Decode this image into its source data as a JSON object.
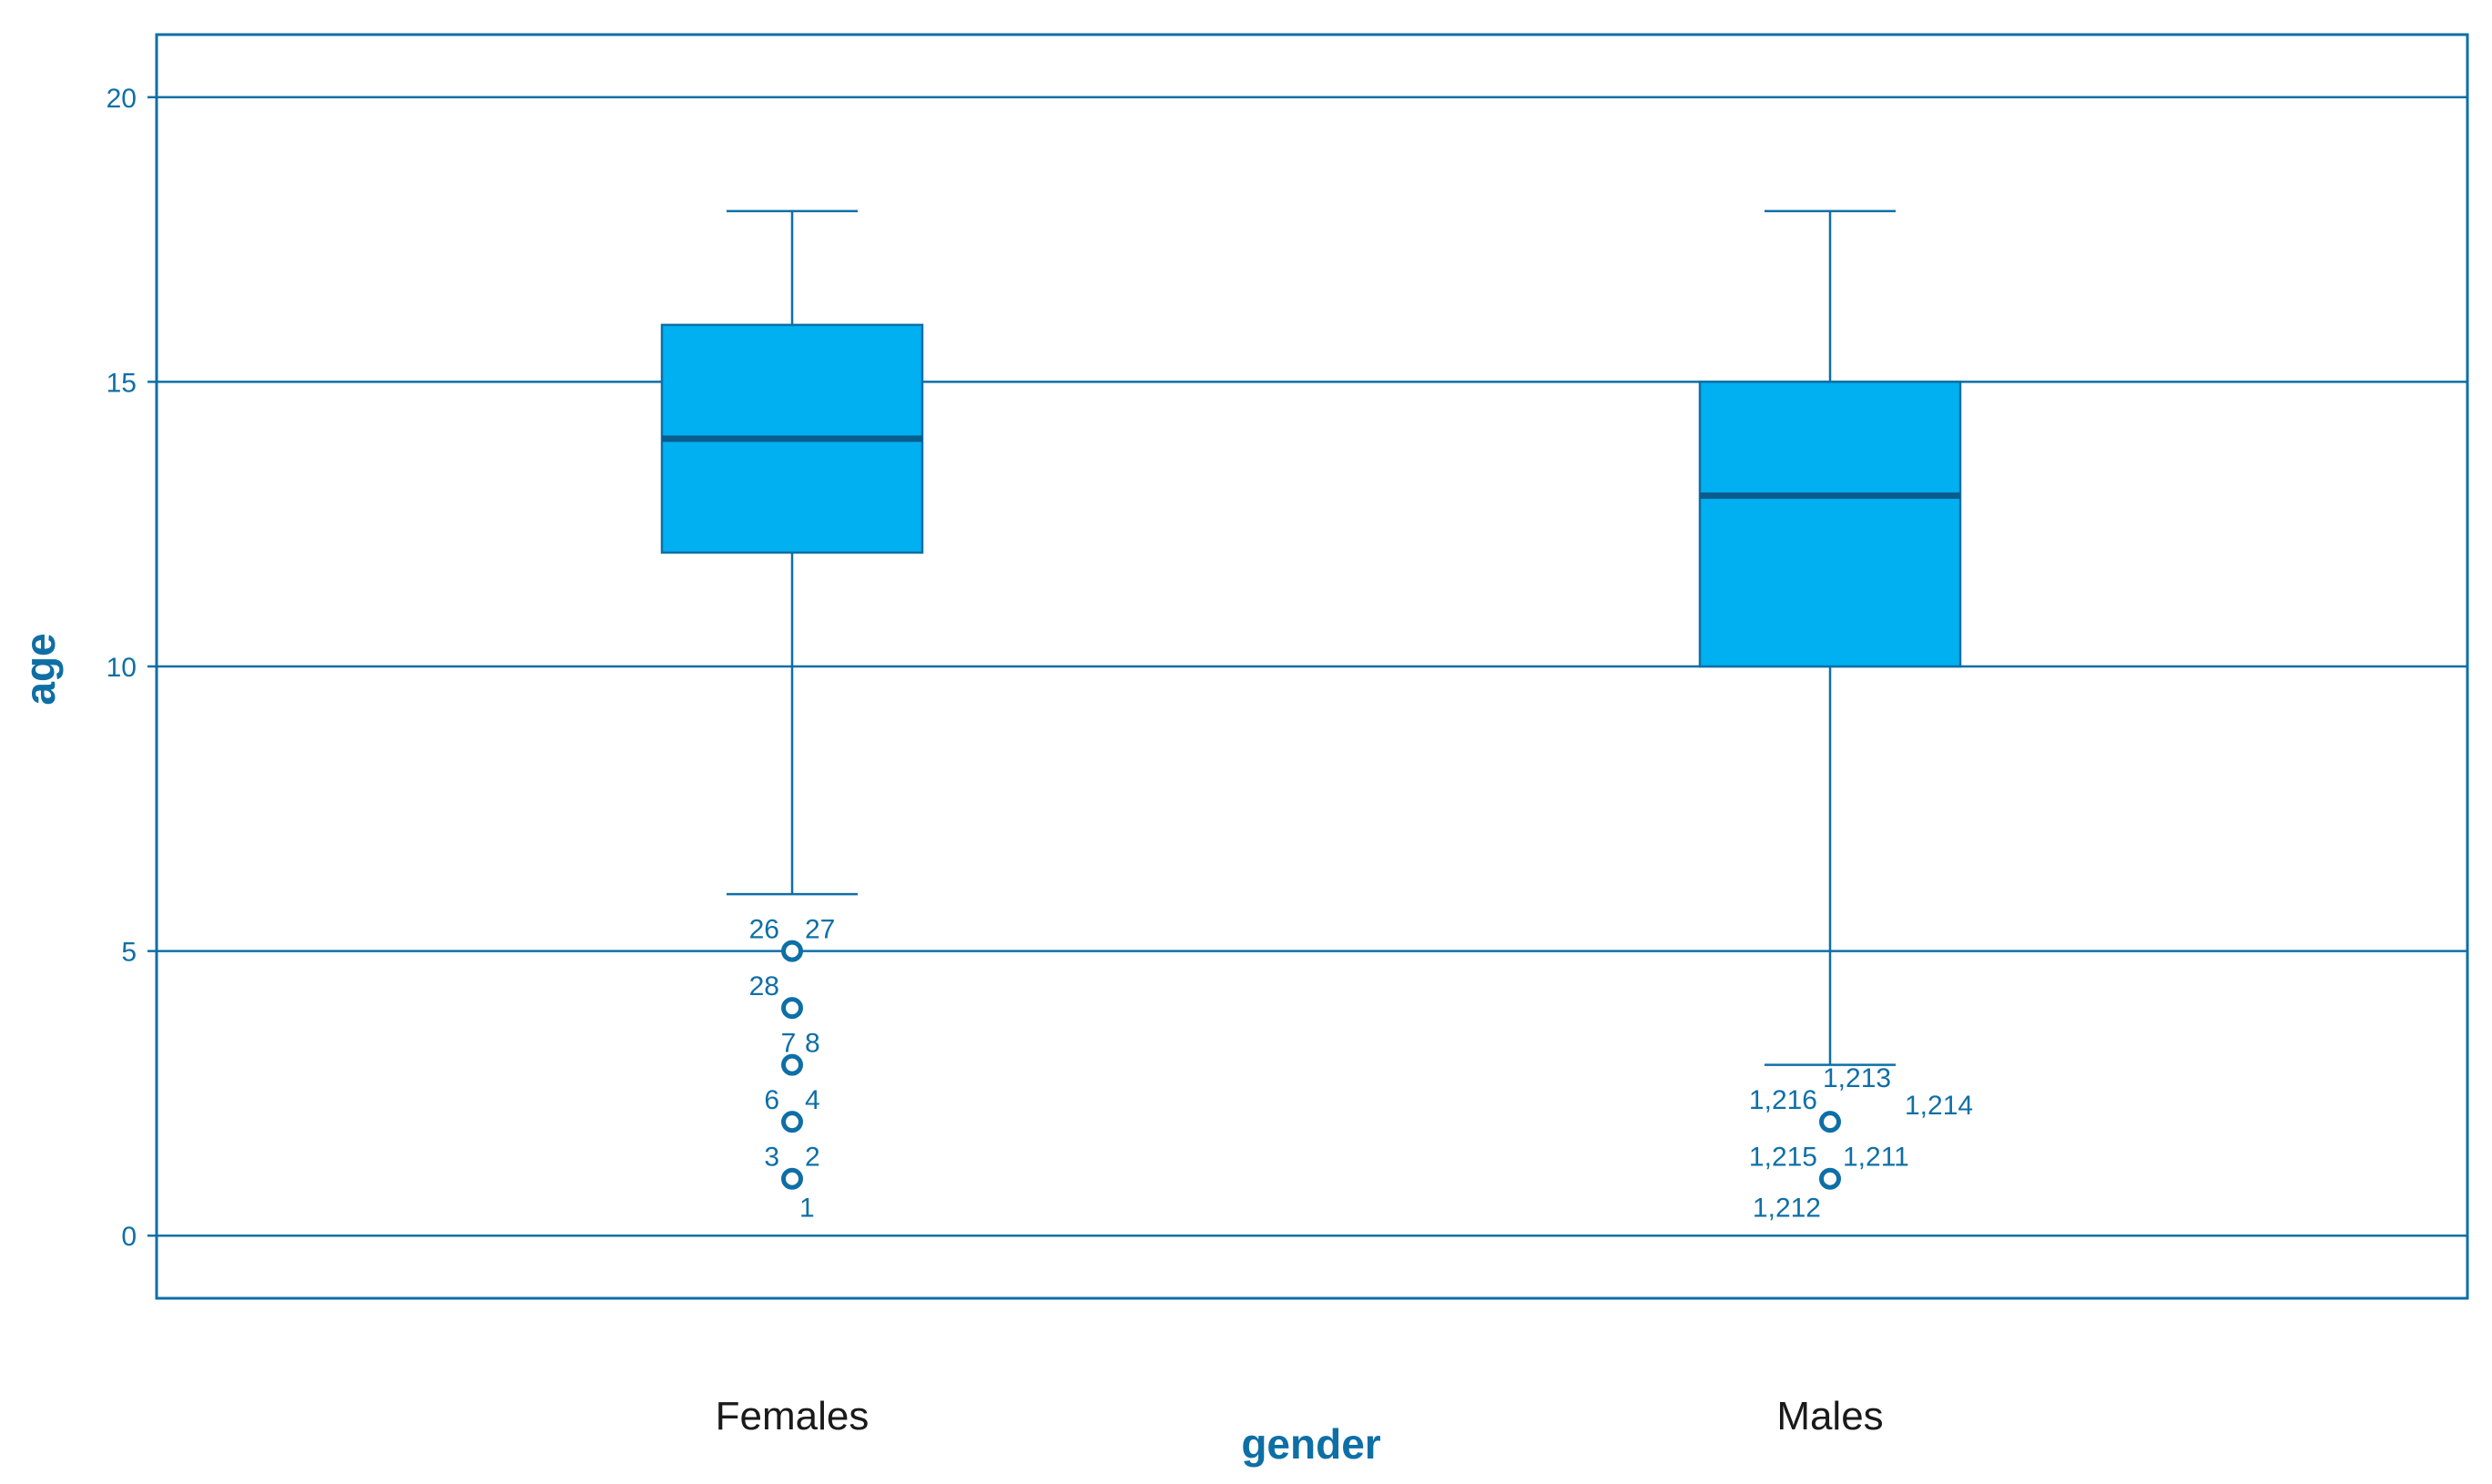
{
  "colors": {
    "box_fill": "#00b0f0",
    "line": "#0e6fa6",
    "median": "#0b5c8c",
    "tick_text": "#0e6fa6",
    "axis_title": "#0e6fa6",
    "category_text": "#1a1a1a",
    "background": "#ffffff"
  },
  "chart_data": {
    "type": "boxplot",
    "xlabel": "gender",
    "ylabel": "age",
    "ylim": [
      -1.1,
      21.1
    ],
    "yticks": [
      0,
      5,
      10,
      15,
      20
    ],
    "grid": "horizontal",
    "categories": [
      "Females",
      "Males"
    ],
    "boxes": [
      {
        "category": "Females",
        "whisker_low": 6,
        "q1": 12,
        "median": 14,
        "q3": 16,
        "whisker_high": 18,
        "outliers": [
          {
            "value": 5,
            "labels": [
              {
                "text": "26",
                "side": "left"
              },
              {
                "text": "27",
                "side": "right"
              }
            ]
          },
          {
            "value": 4,
            "labels": [
              {
                "text": "28",
                "side": "left"
              }
            ]
          },
          {
            "value": 3,
            "labels": [
              {
                "text": "7",
                "side": "center"
              },
              {
                "text": "8",
                "side": "right"
              }
            ]
          },
          {
            "value": 2,
            "labels": [
              {
                "text": "6",
                "side": "left"
              },
              {
                "text": "4",
                "side": "right"
              }
            ]
          },
          {
            "value": 1,
            "labels": [
              {
                "text": "3",
                "side": "left"
              },
              {
                "text": "2",
                "side": "right"
              },
              {
                "text": "1",
                "side": "below"
              }
            ]
          }
        ]
      },
      {
        "category": "Males",
        "whisker_low": 3,
        "q1": 10,
        "median": 13,
        "q3": 15,
        "whisker_high": 18,
        "outliers": [
          {
            "value": 2,
            "labels": [
              {
                "text": "1,216",
                "side": "left"
              },
              {
                "text": "1,213",
                "side": "above-right"
              },
              {
                "text": "1,214",
                "side": "far-right"
              }
            ]
          },
          {
            "value": 1,
            "labels": [
              {
                "text": "1,215",
                "side": "left"
              },
              {
                "text": "1,211",
                "side": "right"
              },
              {
                "text": "1,212",
                "side": "below-left"
              }
            ]
          }
        ]
      }
    ]
  }
}
